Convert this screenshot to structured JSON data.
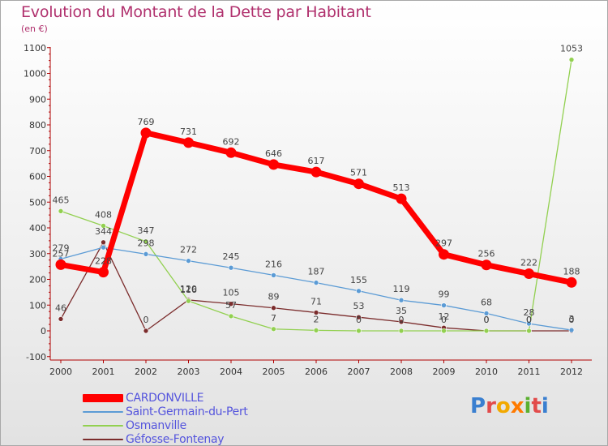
{
  "title": "Evolution du Montant de la Dette par Habitant",
  "unit_label": "(en €)",
  "logo_text": "Proxiti",
  "chart_data": {
    "type": "line",
    "title": "Evolution du Montant de la Dette par Habitant",
    "subtitle": "(en €)",
    "x": [
      "2000",
      "2001",
      "2002",
      "2003",
      "2004",
      "2005",
      "2006",
      "2007",
      "2008",
      "2009",
      "2010",
      "2011",
      "2012"
    ],
    "ylim": [
      -100,
      1100
    ],
    "yticks": [
      -100,
      0,
      100,
      200,
      300,
      400,
      500,
      600,
      700,
      800,
      900,
      1000,
      1100
    ],
    "grid": false,
    "legend_position": "bottom-left",
    "series": [
      {
        "name": "CARDONVILLE",
        "color": "#ff0000",
        "values": [
          257,
          228,
          769,
          731,
          692,
          646,
          617,
          571,
          513,
          297,
          256,
          222,
          188
        ],
        "labels": [
          "257",
          "228",
          "769",
          "731",
          "692",
          "646",
          "617",
          "571",
          "513",
          "297",
          "256",
          "222",
          "188"
        ]
      },
      {
        "name": "Saint-Germain-du-Pert",
        "color": "#5b9bd5",
        "values": [
          279,
          324,
          298,
          272,
          245,
          216,
          187,
          155,
          119,
          99,
          68,
          28,
          3
        ],
        "labels": [
          "279",
          "",
          "298",
          "272",
          "245",
          "216",
          "187",
          "155",
          "119",
          "99",
          "68",
          "28",
          "3"
        ]
      },
      {
        "name": "Osmanville",
        "color": "#92d050",
        "values": [
          465,
          408,
          347,
          116,
          57,
          7,
          2,
          0,
          0,
          0,
          0,
          0,
          1053
        ],
        "labels": [
          "465",
          "408",
          "347",
          "116",
          "57",
          "7",
          "2",
          "0",
          "0",
          "0",
          "0",
          "0",
          "1053"
        ]
      },
      {
        "name": "Géfosse-Fontenay",
        "color": "#7b2c2c",
        "values": [
          46,
          344,
          0,
          120,
          105,
          89,
          71,
          53,
          35,
          12,
          0,
          0,
          0
        ],
        "labels": [
          "46",
          "344",
          "0",
          "120",
          "105",
          "89",
          "71",
          "53",
          "35",
          "12",
          "0",
          "0",
          "0"
        ]
      }
    ]
  }
}
